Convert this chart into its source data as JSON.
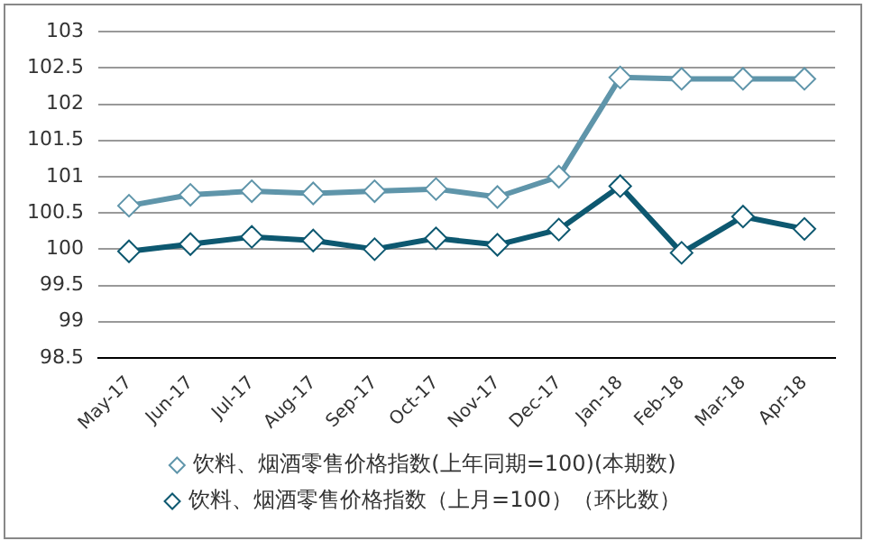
{
  "chart_data": {
    "type": "line",
    "categories": [
      "May-17",
      "Jun-17",
      "Jul-17",
      "Aug-17",
      "Sep-17",
      "Oct-17",
      "Nov-17",
      "Dec-17",
      "Jan-18",
      "Feb-18",
      "Mar-18",
      "Apr-18"
    ],
    "series": [
      {
        "name": "饮料、烟酒零售价格指数(上年同期=100)(本期数)",
        "color": "#5f95aa",
        "values": [
          100.6,
          100.75,
          100.8,
          100.77,
          100.8,
          100.83,
          100.72,
          101.0,
          102.37,
          102.35,
          102.35,
          102.35
        ]
      },
      {
        "name": "饮料、烟酒零售价格指数（上月=100）（环比数）",
        "color": "#0d5870",
        "values": [
          99.97,
          100.07,
          100.17,
          100.12,
          100.0,
          100.15,
          100.06,
          100.27,
          100.87,
          99.95,
          100.45,
          100.28
        ]
      }
    ],
    "ylim": [
      98.5,
      103
    ],
    "yticks": [
      98.5,
      99,
      99.5,
      100,
      100.5,
      101,
      101.5,
      102,
      102.5,
      103
    ],
    "grid": "y",
    "legend": "bottom",
    "marker": "diamond",
    "line_style": "solid"
  }
}
